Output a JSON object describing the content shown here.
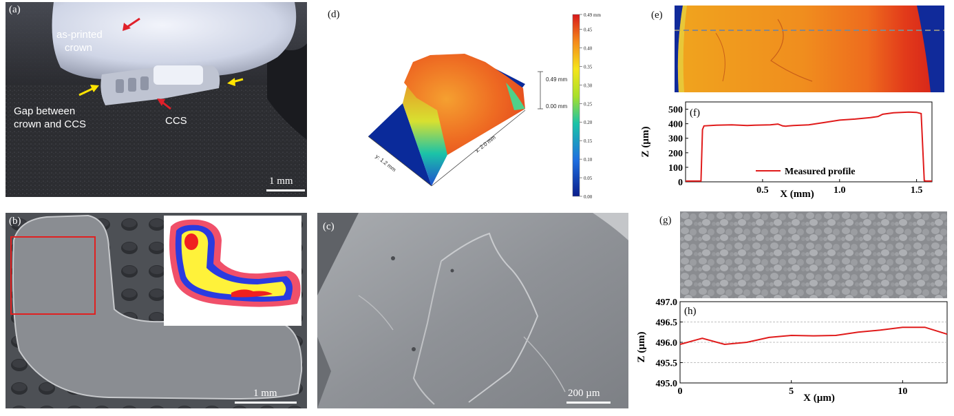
{
  "panels": {
    "a": {
      "label": "(a)",
      "annotations": {
        "crown_line1": "as-printed",
        "crown_line2": "crown",
        "gap_line1": "Gap between",
        "gap_line2": "crown and CCS",
        "ccs": "CCS"
      },
      "scale": "1 mm",
      "colors": {
        "red_arrow": "#e0202a",
        "yellow_arrow": "#ffe400"
      }
    },
    "b": {
      "label": "(b)",
      "scale": "1 mm",
      "colors": {
        "box": "#e02020",
        "inset_outer": "#f0506a",
        "inset_mid": "#2a3be0",
        "inset_core": "#fff23a",
        "inset_hot": "#f02020"
      }
    },
    "c": {
      "label": "(c)",
      "scale": "200 µm"
    },
    "d": {
      "label": "(d)",
      "colorbar_ticks": [
        "0.49 mm",
        "0.45",
        "0.40",
        "0.35",
        "0.30",
        "0.25",
        "0.20",
        "0.15",
        "0.10",
        "0.05",
        "0.00"
      ],
      "z_axis_top": "0.49 mm",
      "z_axis_bottom": "0.00 mm",
      "x_axis": "x: 2.0 mm",
      "y_axis": "y: 1.2 mm"
    },
    "e": {
      "label": "(e)"
    },
    "g": {
      "label": "(g)"
    }
  },
  "chart_data": [
    {
      "id": "f",
      "type": "line",
      "label": "(f)",
      "xlabel": "X (mm)",
      "ylabel": "Z (µm)",
      "xlim": [
        0,
        1.6
      ],
      "ylim": [
        0,
        550
      ],
      "xticks": [
        "0.5",
        "1.0",
        "1.5"
      ],
      "yticks": [
        "0",
        "100",
        "200",
        "300",
        "400",
        "500"
      ],
      "legend": "Measured profile",
      "legend_position": "bottom-center",
      "color": "#e01a1a",
      "series": [
        {
          "name": "Measured profile",
          "x": [
            0,
            0.1,
            0.11,
            0.12,
            0.2,
            0.3,
            0.4,
            0.45,
            0.55,
            0.6,
            0.63,
            0.65,
            0.7,
            0.8,
            0.9,
            1.0,
            1.1,
            1.2,
            1.25,
            1.28,
            1.35,
            1.45,
            1.5,
            1.53,
            1.55,
            1.56,
            1.6
          ],
          "y": [
            5,
            5,
            360,
            385,
            390,
            392,
            388,
            390,
            392,
            398,
            385,
            383,
            388,
            392,
            408,
            425,
            432,
            442,
            450,
            465,
            475,
            480,
            478,
            470,
            8,
            5,
            5
          ]
        }
      ]
    },
    {
      "id": "h",
      "type": "line",
      "label": "(h)",
      "xlabel": "X (µm)",
      "ylabel": "Z (µm)",
      "xlim": [
        0,
        12
      ],
      "ylim": [
        495.0,
        497.0
      ],
      "xticks": [
        "0",
        "5",
        "10"
      ],
      "yticks": [
        "495.0",
        "495.5",
        "496.0",
        "496.5",
        "497.0"
      ],
      "grid": true,
      "color": "#e01a1a",
      "series": [
        {
          "name": "",
          "x": [
            0,
            1,
            2,
            3,
            4,
            5,
            6,
            7,
            8,
            9,
            10,
            11,
            12
          ],
          "y": [
            495.95,
            496.1,
            495.95,
            496.0,
            496.12,
            496.17,
            496.16,
            496.17,
            496.25,
            496.3,
            496.37,
            496.37,
            496.2
          ]
        }
      ]
    }
  ]
}
